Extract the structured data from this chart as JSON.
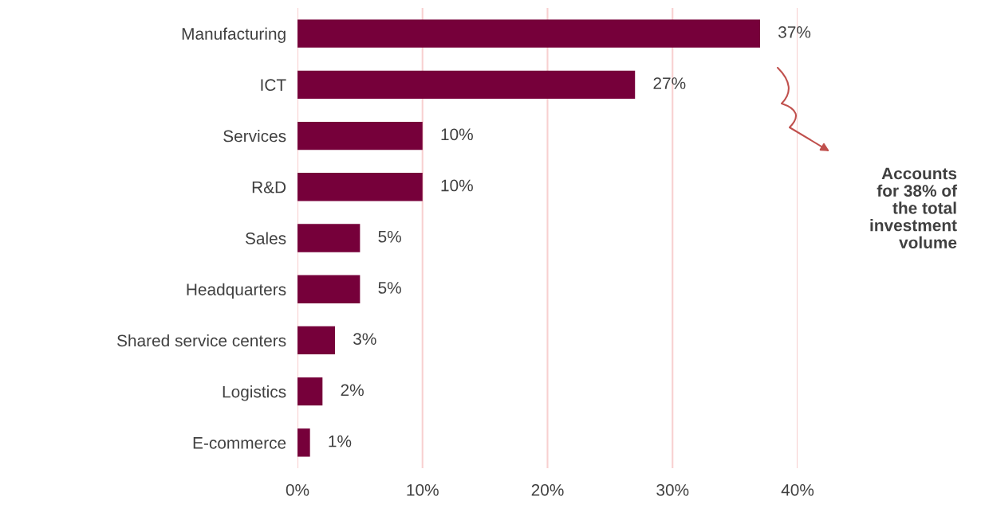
{
  "chart_data": {
    "type": "bar",
    "orientation": "horizontal",
    "categories": [
      "Manufacturing",
      "ICT",
      "Services",
      "R&D",
      "Sales",
      "Headquarters",
      "Shared service centers",
      "Logistics",
      "E-commerce"
    ],
    "values": [
      37,
      27,
      10,
      10,
      5,
      5,
      3,
      2,
      1
    ],
    "color": "#76003a",
    "value_labels": [
      "37%",
      "27%",
      "10%",
      "10%",
      "5%",
      "5%",
      "3%",
      "2%",
      "1%"
    ],
    "xlim": [
      0,
      40
    ],
    "xticks": [
      {
        "value": 0,
        "label": "0%"
      },
      {
        "value": 10,
        "label": "10%"
      },
      {
        "value": 20,
        "label": "20%"
      },
      {
        "value": 30,
        "label": "30%"
      },
      {
        "value": 40,
        "label": "40%"
      }
    ],
    "grid": "x",
    "annotations": [
      "Accounts\nfor 38% of\nthe total\ninvestment\nvolume"
    ]
  }
}
